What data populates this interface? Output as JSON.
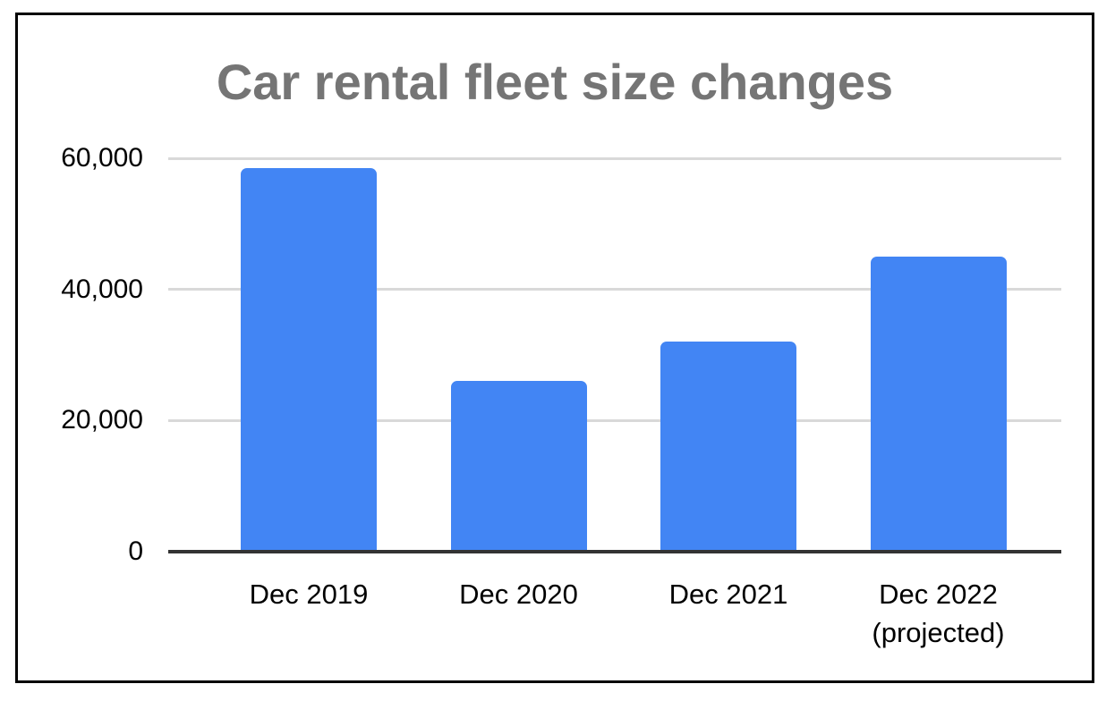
{
  "chart_data": {
    "type": "bar",
    "title": "Car rental fleet size changes",
    "categories": [
      "Dec 2019",
      "Dec 2020",
      "Dec 2021",
      "Dec 2022\n(projected)"
    ],
    "values": [
      58500,
      26000,
      32000,
      45000
    ],
    "xlabel": "",
    "ylabel": "",
    "ylim": [
      0,
      60000
    ],
    "yticks": [
      {
        "value": 0,
        "label": "0"
      },
      {
        "value": 20000,
        "label": "20,000"
      },
      {
        "value": 40000,
        "label": "40,000"
      },
      {
        "value": 60000,
        "label": "60,000"
      }
    ],
    "grid": true,
    "legend_position": "none",
    "colors": {
      "bar": "#4285f4",
      "title": "#757575",
      "axis_line": "#333333",
      "gridline": "#d9d9d9",
      "tick_label": "#000000",
      "background": "#ffffff",
      "frame_border": "#000000"
    }
  }
}
